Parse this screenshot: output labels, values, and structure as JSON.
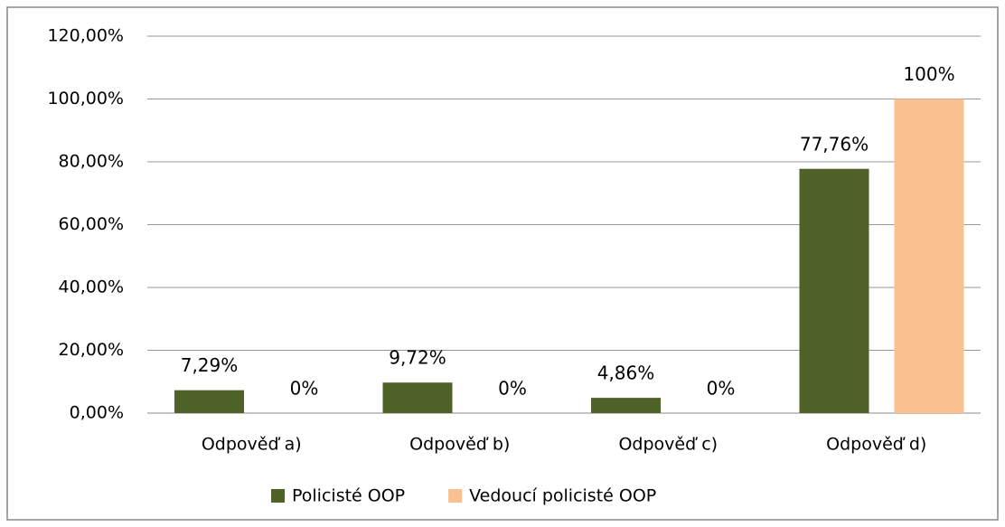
{
  "chart_data": {
    "type": "bar",
    "categories": [
      "Odpověď a)",
      "Odpověď b)",
      "Odpověď c)",
      "Odpověď d)"
    ],
    "series": [
      {
        "name": "Policisté OOP",
        "color": "#4f6228",
        "values": [
          7.29,
          9.72,
          4.86,
          77.76
        ],
        "value_labels": [
          "7,29%",
          "9,72%",
          "4,86%",
          "77,76%"
        ]
      },
      {
        "name": "Vedoucí policisté OOP",
        "color": "#fac090",
        "values": [
          0,
          0,
          0,
          100
        ],
        "value_labels": [
          "0%",
          "0%",
          "0%",
          "100%"
        ]
      }
    ],
    "ylim": [
      0,
      120
    ],
    "yticks": [
      {
        "value": 0,
        "label": "0,00%"
      },
      {
        "value": 20,
        "label": "20,00%"
      },
      {
        "value": 40,
        "label": "40,00%"
      },
      {
        "value": 60,
        "label": "60,00%"
      },
      {
        "value": 80,
        "label": "80,00%"
      },
      {
        "value": 100,
        "label": "100,00%"
      },
      {
        "value": 120,
        "label": "120,00%"
      }
    ],
    "grid": true,
    "legend": "bottom"
  }
}
